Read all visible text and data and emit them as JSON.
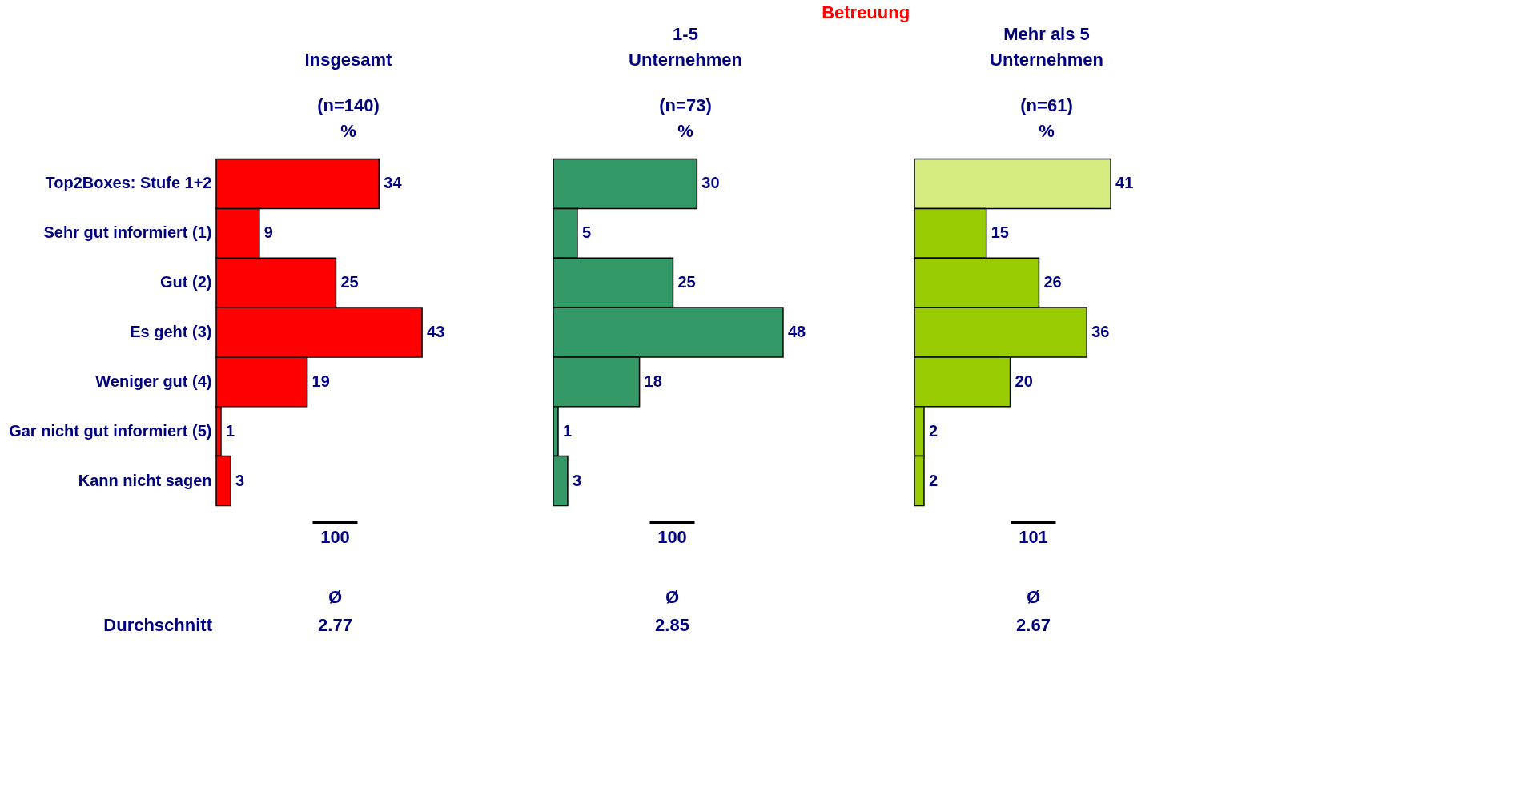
{
  "chart_data": [
    {
      "type": "bar",
      "orientation": "horizontal",
      "title": "Insgesamt",
      "subtitle": "(n=140)\n%",
      "categories": [
        "Top2Boxes: Stufe 1+2",
        "Sehr gut informiert (1)",
        "Gut (2)",
        "Es geht (3)",
        "Weniger gut (4)",
        "Gar nicht gut informiert (5)",
        "Kann nicht sagen"
      ],
      "values": [
        34,
        9,
        25,
        43,
        19,
        1,
        3
      ],
      "colors": [
        "#ff0000",
        "#ff0000",
        "#ff0000",
        "#ff0000",
        "#ff0000",
        "#ff0000",
        "#ff0000"
      ],
      "data_labels": true,
      "tick_labels": "y",
      "annotations": [
        "100",
        "Ø",
        "2.77",
        "Durchschnitt"
      ]
    },
    {
      "type": "bar",
      "orientation": "horizontal",
      "title": "1-5 Unternehmen",
      "subtitle": "(n=73)\n%",
      "categories": [
        null,
        null,
        null,
        null,
        null,
        null,
        null
      ],
      "values": [
        30,
        5,
        25,
        48,
        18,
        1,
        3
      ],
      "colors": [
        "#339966",
        "#339966",
        "#339966",
        "#339966",
        "#339966",
        "#339966",
        "#339966"
      ],
      "data_labels": true,
      "tick_labels": false,
      "annotations": [
        "100",
        "Ø",
        "2.85",
        "Betreuung"
      ]
    },
    {
      "type": "bar",
      "orientation": "horizontal",
      "title": "Mehr als 5 Unternehmen",
      "subtitle": "(n=61)\n%",
      "categories": [
        null,
        null,
        null,
        null,
        null,
        null,
        null
      ],
      "values": [
        41,
        15,
        26,
        36,
        20,
        2,
        2
      ],
      "colors": [
        "#d4ec80",
        "#99cc00",
        "#99cc00",
        "#99cc00",
        "#99cc00",
        "#99cc00",
        "#99cc00"
      ],
      "data_labels": true,
      "tick_labels": false,
      "annotations": [
        "101",
        "Ø",
        "2.67"
      ]
    }
  ]
}
